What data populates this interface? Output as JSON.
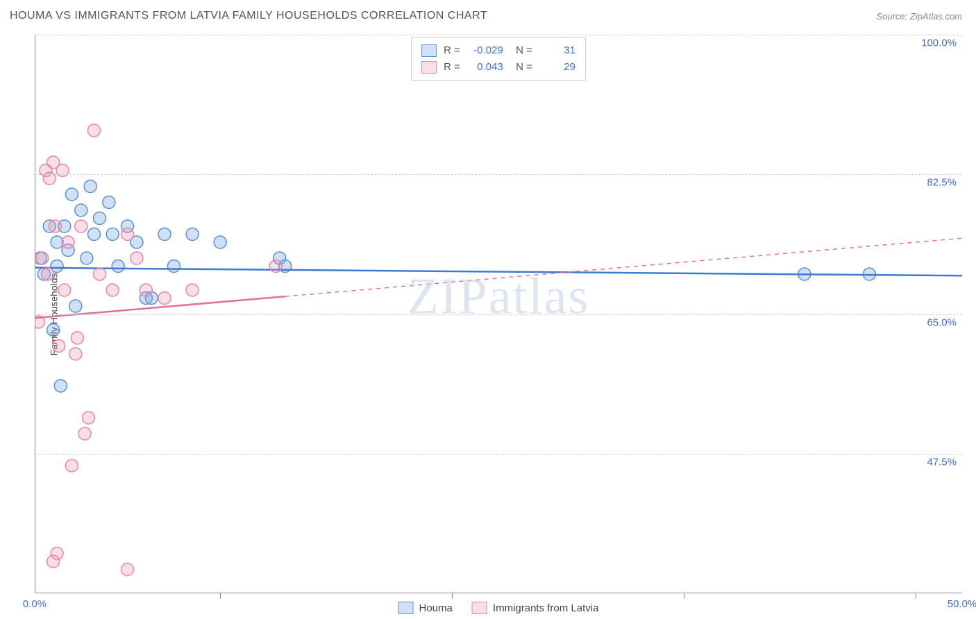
{
  "title": "HOUMA VS IMMIGRANTS FROM LATVIA FAMILY HOUSEHOLDS CORRELATION CHART",
  "source": "Source: ZipAtlas.com",
  "watermark": "ZIPatlas",
  "ylabel": "Family Households",
  "chart": {
    "type": "scatter",
    "xlim": [
      0,
      50
    ],
    "ylim": [
      30,
      100
    ],
    "yticks": [
      {
        "v": 100.0,
        "label": "100.0%"
      },
      {
        "v": 82.5,
        "label": "82.5%"
      },
      {
        "v": 65.0,
        "label": "65.0%"
      },
      {
        "v": 47.5,
        "label": "47.5%"
      }
    ],
    "xticks": [
      {
        "v": 0.0,
        "label": "0.0%"
      },
      {
        "v": 50.0,
        "label": "50.0%"
      }
    ],
    "xtick_marks": [
      10,
      22.5,
      35,
      47.5
    ],
    "grid_color": "#d0d0d0",
    "background_color": "#ffffff",
    "marker_radius": 9,
    "marker_stroke_width": 1.5,
    "series": [
      {
        "name": "Houma",
        "fill": "rgba(120,170,230,0.35)",
        "stroke": "#5a8fd6",
        "line_color": "#3b7bd1",
        "line_width": 2.5,
        "R": "-0.029",
        "N": "31",
        "trend": {
          "x1": 0,
          "y1": 70.8,
          "x2": 50,
          "y2": 69.8,
          "solid_until": 50
        },
        "points": [
          [
            0.3,
            72
          ],
          [
            0.5,
            70
          ],
          [
            0.8,
            76
          ],
          [
            1.0,
            63
          ],
          [
            1.2,
            74
          ],
          [
            1.2,
            71
          ],
          [
            1.4,
            56
          ],
          [
            1.6,
            76
          ],
          [
            1.8,
            73
          ],
          [
            2.0,
            80
          ],
          [
            2.2,
            66
          ],
          [
            2.5,
            78
          ],
          [
            2.8,
            72
          ],
          [
            3.0,
            81
          ],
          [
            3.2,
            75
          ],
          [
            3.5,
            77
          ],
          [
            4.0,
            79
          ],
          [
            4.2,
            75
          ],
          [
            4.5,
            71
          ],
          [
            5.0,
            76
          ],
          [
            5.5,
            74
          ],
          [
            6.0,
            67
          ],
          [
            6.3,
            67
          ],
          [
            7.0,
            75
          ],
          [
            7.5,
            71
          ],
          [
            8.5,
            75
          ],
          [
            10.0,
            74
          ],
          [
            13.2,
            72
          ],
          [
            13.5,
            71
          ],
          [
            41.5,
            70
          ],
          [
            45.0,
            70
          ]
        ]
      },
      {
        "name": "Immigrants from Latvia",
        "fill": "rgba(235,145,175,0.30)",
        "stroke": "#e785a5",
        "line_color": "#e36f95",
        "line_width": 2.5,
        "R": "0.043",
        "N": "29",
        "trend": {
          "x1": 0,
          "y1": 64.5,
          "x2": 50,
          "y2": 74.5,
          "solid_until": 13.5
        },
        "points": [
          [
            0.2,
            64
          ],
          [
            0.4,
            72
          ],
          [
            0.6,
            83
          ],
          [
            0.7,
            70
          ],
          [
            0.8,
            82
          ],
          [
            1.0,
            84
          ],
          [
            1.1,
            76
          ],
          [
            1.3,
            61
          ],
          [
            1.5,
            83
          ],
          [
            1.6,
            68
          ],
          [
            1.8,
            74
          ],
          [
            2.0,
            46
          ],
          [
            2.2,
            60
          ],
          [
            2.3,
            62
          ],
          [
            2.5,
            76
          ],
          [
            2.7,
            50
          ],
          [
            2.9,
            52
          ],
          [
            3.2,
            88
          ],
          [
            3.5,
            70
          ],
          [
            4.2,
            68
          ],
          [
            5.0,
            75
          ],
          [
            5.0,
            33
          ],
          [
            5.5,
            72
          ],
          [
            6.0,
            68
          ],
          [
            7.0,
            67
          ],
          [
            8.5,
            68
          ],
          [
            1.2,
            35
          ],
          [
            1.0,
            34
          ],
          [
            13.0,
            71
          ]
        ]
      }
    ]
  },
  "legend_bottom": [
    {
      "swatch_fill": "rgba(120,170,230,0.35)",
      "swatch_stroke": "#5a8fd6",
      "label": "Houma"
    },
    {
      "swatch_fill": "rgba(235,145,175,0.30)",
      "swatch_stroke": "#e785a5",
      "label": "Immigrants from Latvia"
    }
  ]
}
